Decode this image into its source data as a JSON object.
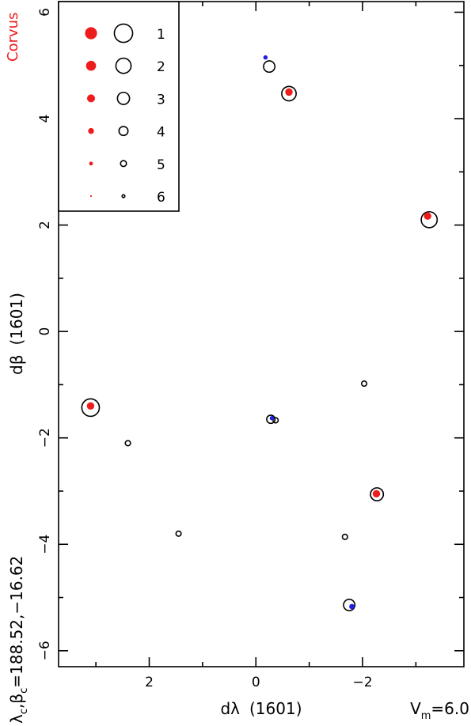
{
  "chart_data": {
    "type": "scatter",
    "constellation": "Corvus",
    "xlabel_parts": [
      "dλ",
      "(1601)"
    ],
    "ylabel_parts": [
      "dβ",
      "(1601)"
    ],
    "center_label": {
      "lambda": "λ",
      "c1": "c",
      "comma": ",",
      "beta": "β",
      "c2": "c",
      "values": "=188.52,−16.62"
    },
    "vmag_label": {
      "prefix": "V",
      "sub": "m",
      "suffix": "=6.0"
    },
    "xlim": [
      3.7,
      -3.9
    ],
    "ylim": [
      -6.3,
      6.2
    ],
    "x_ticks": [
      {
        "v": 2,
        "label": "2"
      },
      {
        "v": 0,
        "label": "0"
      },
      {
        "v": -2,
        "label": "−2"
      }
    ],
    "y_ticks": [
      {
        "v": 6,
        "label": "6"
      },
      {
        "v": 4,
        "label": "4"
      },
      {
        "v": 2,
        "label": "2"
      },
      {
        "v": 0,
        "label": "0"
      },
      {
        "v": -2,
        "label": "−2"
      },
      {
        "v": -4,
        "label": "−4"
      },
      {
        "v": -6,
        "label": "−6"
      }
    ],
    "legend": {
      "position": "top-left",
      "entries": [
        {
          "mag": "1",
          "label": "1"
        },
        {
          "mag": "2",
          "label": "2"
        },
        {
          "mag": "3",
          "label": "3"
        },
        {
          "mag": "4",
          "label": "4"
        },
        {
          "mag": "5",
          "label": "5"
        },
        {
          "mag": "6",
          "label": "6"
        }
      ]
    },
    "open_circles": [
      {
        "x": -0.25,
        "y": 4.98,
        "mag": 3.5
      },
      {
        "x": -0.62,
        "y": 4.47,
        "mag": 2.5
      },
      {
        "x": -3.25,
        "y": 2.1,
        "mag": 2
      },
      {
        "x": 3.1,
        "y": -1.43,
        "mag": 1.5
      },
      {
        "x": -2.03,
        "y": -0.98,
        "mag": 5.5
      },
      {
        "x": -0.28,
        "y": -1.65,
        "mag": 4.5
      },
      {
        "x": -0.37,
        "y": -1.67,
        "mag": 5.5
      },
      {
        "x": 2.4,
        "y": -2.1,
        "mag": 5.5
      },
      {
        "x": -2.27,
        "y": -3.06,
        "mag": 3
      },
      {
        "x": 1.45,
        "y": -3.8,
        "mag": 5.5
      },
      {
        "x": -1.67,
        "y": -3.86,
        "mag": 5.5
      },
      {
        "x": -1.75,
        "y": -5.14,
        "mag": 3.5
      }
    ],
    "filled_points": [
      {
        "x": -0.62,
        "y": 4.5,
        "mag": 3,
        "color": "red"
      },
      {
        "x": -3.22,
        "y": 2.17,
        "mag": 3,
        "color": "red"
      },
      {
        "x": 3.1,
        "y": -1.4,
        "mag": 3,
        "color": "red"
      },
      {
        "x": -2.26,
        "y": -3.05,
        "mag": 3,
        "color": "red"
      },
      {
        "x": -0.18,
        "y": 5.15,
        "mag": 4.5,
        "color": "blue"
      },
      {
        "x": -0.3,
        "y": -1.63,
        "mag": 4.5,
        "color": "blue"
      },
      {
        "x": -1.8,
        "y": -5.17,
        "mag": 4,
        "color": "blue"
      }
    ],
    "colors": {
      "red": "#ee1c1c",
      "blue": "#1f1fe0",
      "title": "#ee1c1c",
      "frame": "#000000"
    },
    "grid": false
  }
}
